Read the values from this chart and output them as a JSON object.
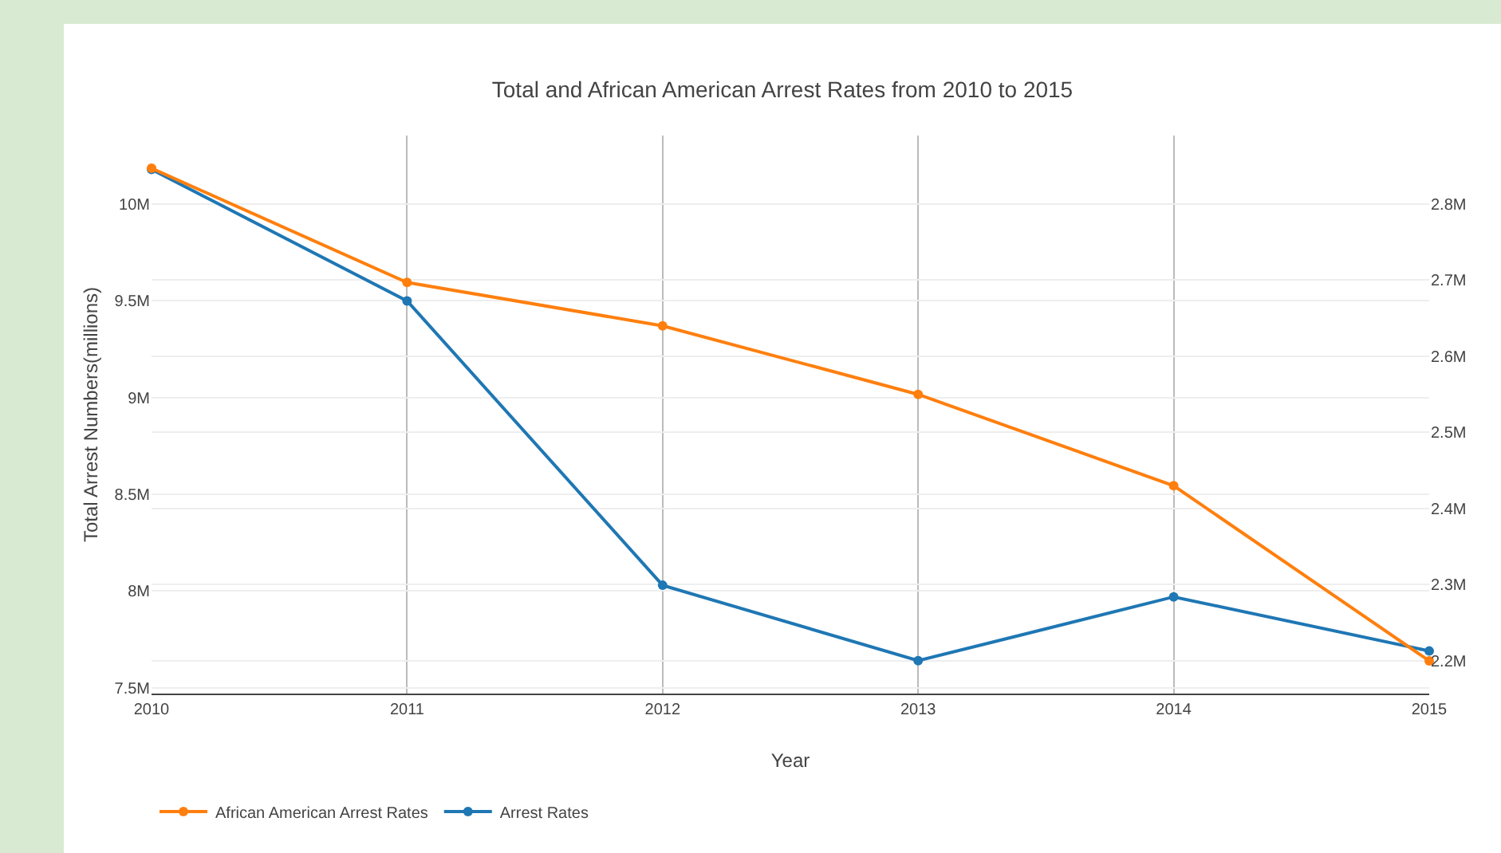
{
  "chart_data": {
    "type": "line",
    "title": "Total and African American Arrest Rates from 2010 to 2015",
    "xlabel": "Year",
    "ylabel": "Total Arrest Numbers(millions)",
    "x": [
      2010,
      2011,
      2012,
      2013,
      2014,
      2015
    ],
    "series": [
      {
        "name": "African American Arrest Rates",
        "color": "#ff7f0e",
        "axis": "y2",
        "values": [
          2847000,
          2697000,
          2640000,
          2550000,
          2430000,
          2200000
        ]
      },
      {
        "name": "Arrest Rates",
        "color": "#1f77b4",
        "values": [
          10180000,
          9500000,
          8030000,
          7640000,
          7970000,
          7690000
        ]
      }
    ],
    "xlim": [
      2010,
      2015
    ],
    "xticks": [
      2010,
      2011,
      2012,
      2013,
      2014,
      2015
    ],
    "ylim": [
      7470000,
      10355000
    ],
    "yticks": [
      {
        "value": 7500000,
        "label": "7.5M"
      },
      {
        "value": 8000000,
        "label": "8M"
      },
      {
        "value": 8500000,
        "label": "8.5M"
      },
      {
        "value": 9000000,
        "label": "9M"
      },
      {
        "value": 9500000,
        "label": "9.5M"
      },
      {
        "value": 10000000,
        "label": "10M"
      }
    ],
    "y2lim": [
      2157000,
      2890000
    ],
    "y2ticks": [
      {
        "value": 2200000,
        "label": "2.2M"
      },
      {
        "value": 2300000,
        "label": "2.3M"
      },
      {
        "value": 2400000,
        "label": "2.4M"
      },
      {
        "value": 2500000,
        "label": "2.5M"
      },
      {
        "value": 2600000,
        "label": "2.6M"
      },
      {
        "value": 2700000,
        "label": "2.7M"
      },
      {
        "value": 2800000,
        "label": "2.8M"
      }
    ],
    "grid": true,
    "legend": "bottom left",
    "marker": "circle",
    "line_style": "solid"
  }
}
